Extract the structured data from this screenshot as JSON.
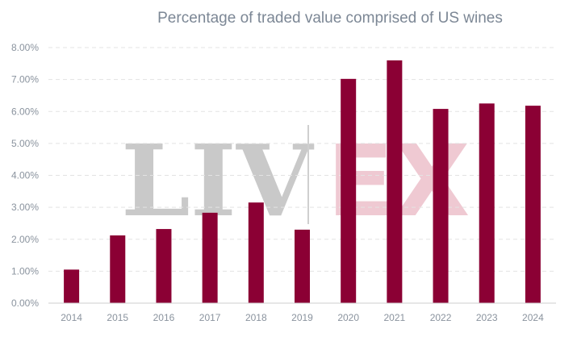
{
  "watermark": {
    "left": "LIV",
    "right": "EX"
  },
  "chart_data": {
    "type": "bar",
    "title": "Percentage of traded value comprised of US wines",
    "xlabel": "",
    "ylabel": "",
    "categories": [
      "2014",
      "2015",
      "2016",
      "2017",
      "2018",
      "2019",
      "2020",
      "2021",
      "2022",
      "2023",
      "2024"
    ],
    "values": [
      1.05,
      2.12,
      2.32,
      2.83,
      3.15,
      2.3,
      7.02,
      7.6,
      6.08,
      6.25,
      6.18
    ],
    "ylim": [
      0,
      8
    ],
    "yticks": [
      "0.00%",
      "1.00%",
      "2.00%",
      "3.00%",
      "4.00%",
      "5.00%",
      "6.00%",
      "7.00%",
      "8.00%"
    ],
    "bar_color": "#8b0034",
    "grid": true,
    "legend": "none"
  }
}
